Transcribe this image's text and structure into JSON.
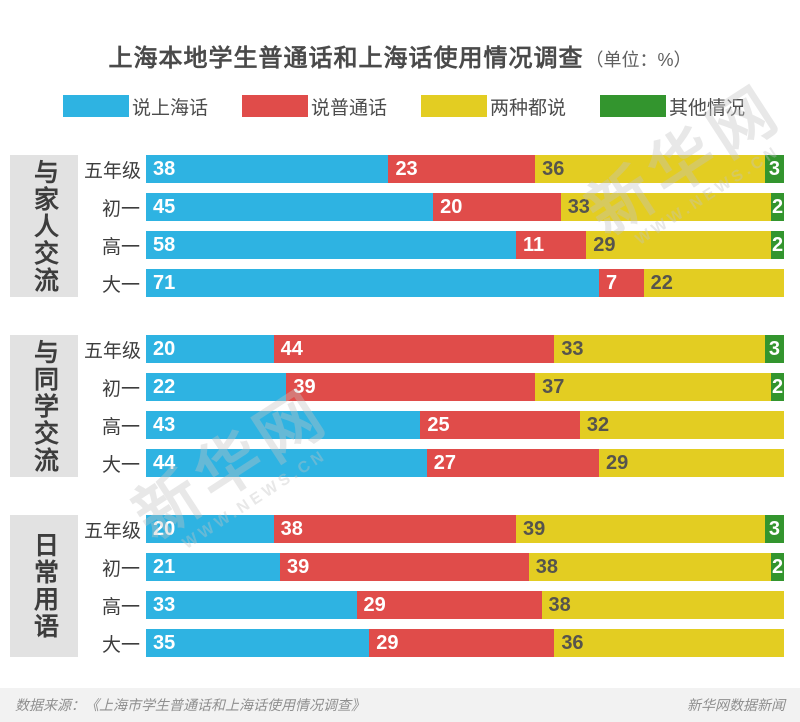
{
  "title": {
    "main": "上海本地学生普通话和上海话使用情况调查",
    "unit": "（单位：%）"
  },
  "legend": [
    {
      "label": "说上海话",
      "color": "#2eb3e2"
    },
    {
      "label": "说普通话",
      "color": "#e04c4a"
    },
    {
      "label": "两种都说",
      "color": "#e3cd22"
    },
    {
      "label": "其他情况",
      "color": "#33952e"
    }
  ],
  "chart_data": {
    "type": "bar",
    "stacked": true,
    "orientation": "horizontal",
    "unit": "%",
    "xlim": [
      0,
      100
    ],
    "series_names": [
      "说上海话",
      "说普通话",
      "两种都说",
      "其他情况"
    ],
    "series_colors": [
      "#2eb3e2",
      "#e04c4a",
      "#e3cd22",
      "#33952e"
    ],
    "groups": [
      {
        "label": "与家人交流",
        "rows": [
          {
            "label": "五年级",
            "values": [
              38,
              23,
              36,
              3
            ]
          },
          {
            "label": "初一",
            "values": [
              45,
              20,
              33,
              2
            ]
          },
          {
            "label": "高一",
            "values": [
              58,
              11,
              29,
              2
            ]
          },
          {
            "label": "大一",
            "values": [
              71,
              7,
              22,
              0
            ]
          }
        ]
      },
      {
        "label": "与同学交流",
        "rows": [
          {
            "label": "五年级",
            "values": [
              20,
              44,
              33,
              3
            ]
          },
          {
            "label": "初一",
            "values": [
              22,
              39,
              37,
              2
            ]
          },
          {
            "label": "高一",
            "values": [
              43,
              25,
              32,
              0
            ]
          },
          {
            "label": "大一",
            "values": [
              44,
              27,
              29,
              0
            ]
          }
        ]
      },
      {
        "label": "日常用语",
        "rows": [
          {
            "label": "五年级",
            "values": [
              20,
              38,
              39,
              3
            ]
          },
          {
            "label": "初一",
            "values": [
              21,
              39,
              38,
              2
            ]
          },
          {
            "label": "高一",
            "values": [
              33,
              29,
              38,
              0
            ]
          },
          {
            "label": "大一",
            "values": [
              35,
              29,
              36,
              0
            ]
          }
        ]
      }
    ]
  },
  "watermark": {
    "line1": "新华网",
    "line2": "WWW.NEWS.CN"
  },
  "footer": {
    "source": "数据来源：《上海市学生普通话和上海话使用情况调查》",
    "credit": "新华网数据新闻"
  },
  "colors": {
    "blue": "#2eb3e2",
    "red": "#e04c4a",
    "yellow": "#e3cd22",
    "green": "#33952e",
    "value_on_yellow": "#56544d",
    "group_box_bg": "#e2e2e2",
    "footer_bg": "#f2f2f2"
  }
}
